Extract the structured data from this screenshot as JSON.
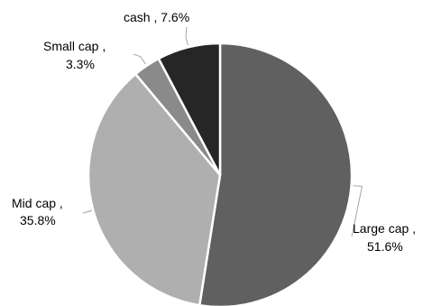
{
  "chart_data": {
    "type": "pie",
    "title": "",
    "slices": [
      {
        "label": "Large cap",
        "value": 51.6,
        "display": "51.6%",
        "color": "#606060"
      },
      {
        "label": "Mid cap",
        "value": 35.8,
        "display": "35.8%",
        "color": "#afafaf"
      },
      {
        "label": "Small cap",
        "value": 3.3,
        "display": "3.3%",
        "color": "#8a8a8a"
      },
      {
        "label": "cash",
        "value": 7.6,
        "display": "7.6%",
        "color": "#262626"
      }
    ],
    "start_angle_deg": 0,
    "direction": "clockwise",
    "legend": "none",
    "data_labels": "category name and percentage with leader lines"
  }
}
